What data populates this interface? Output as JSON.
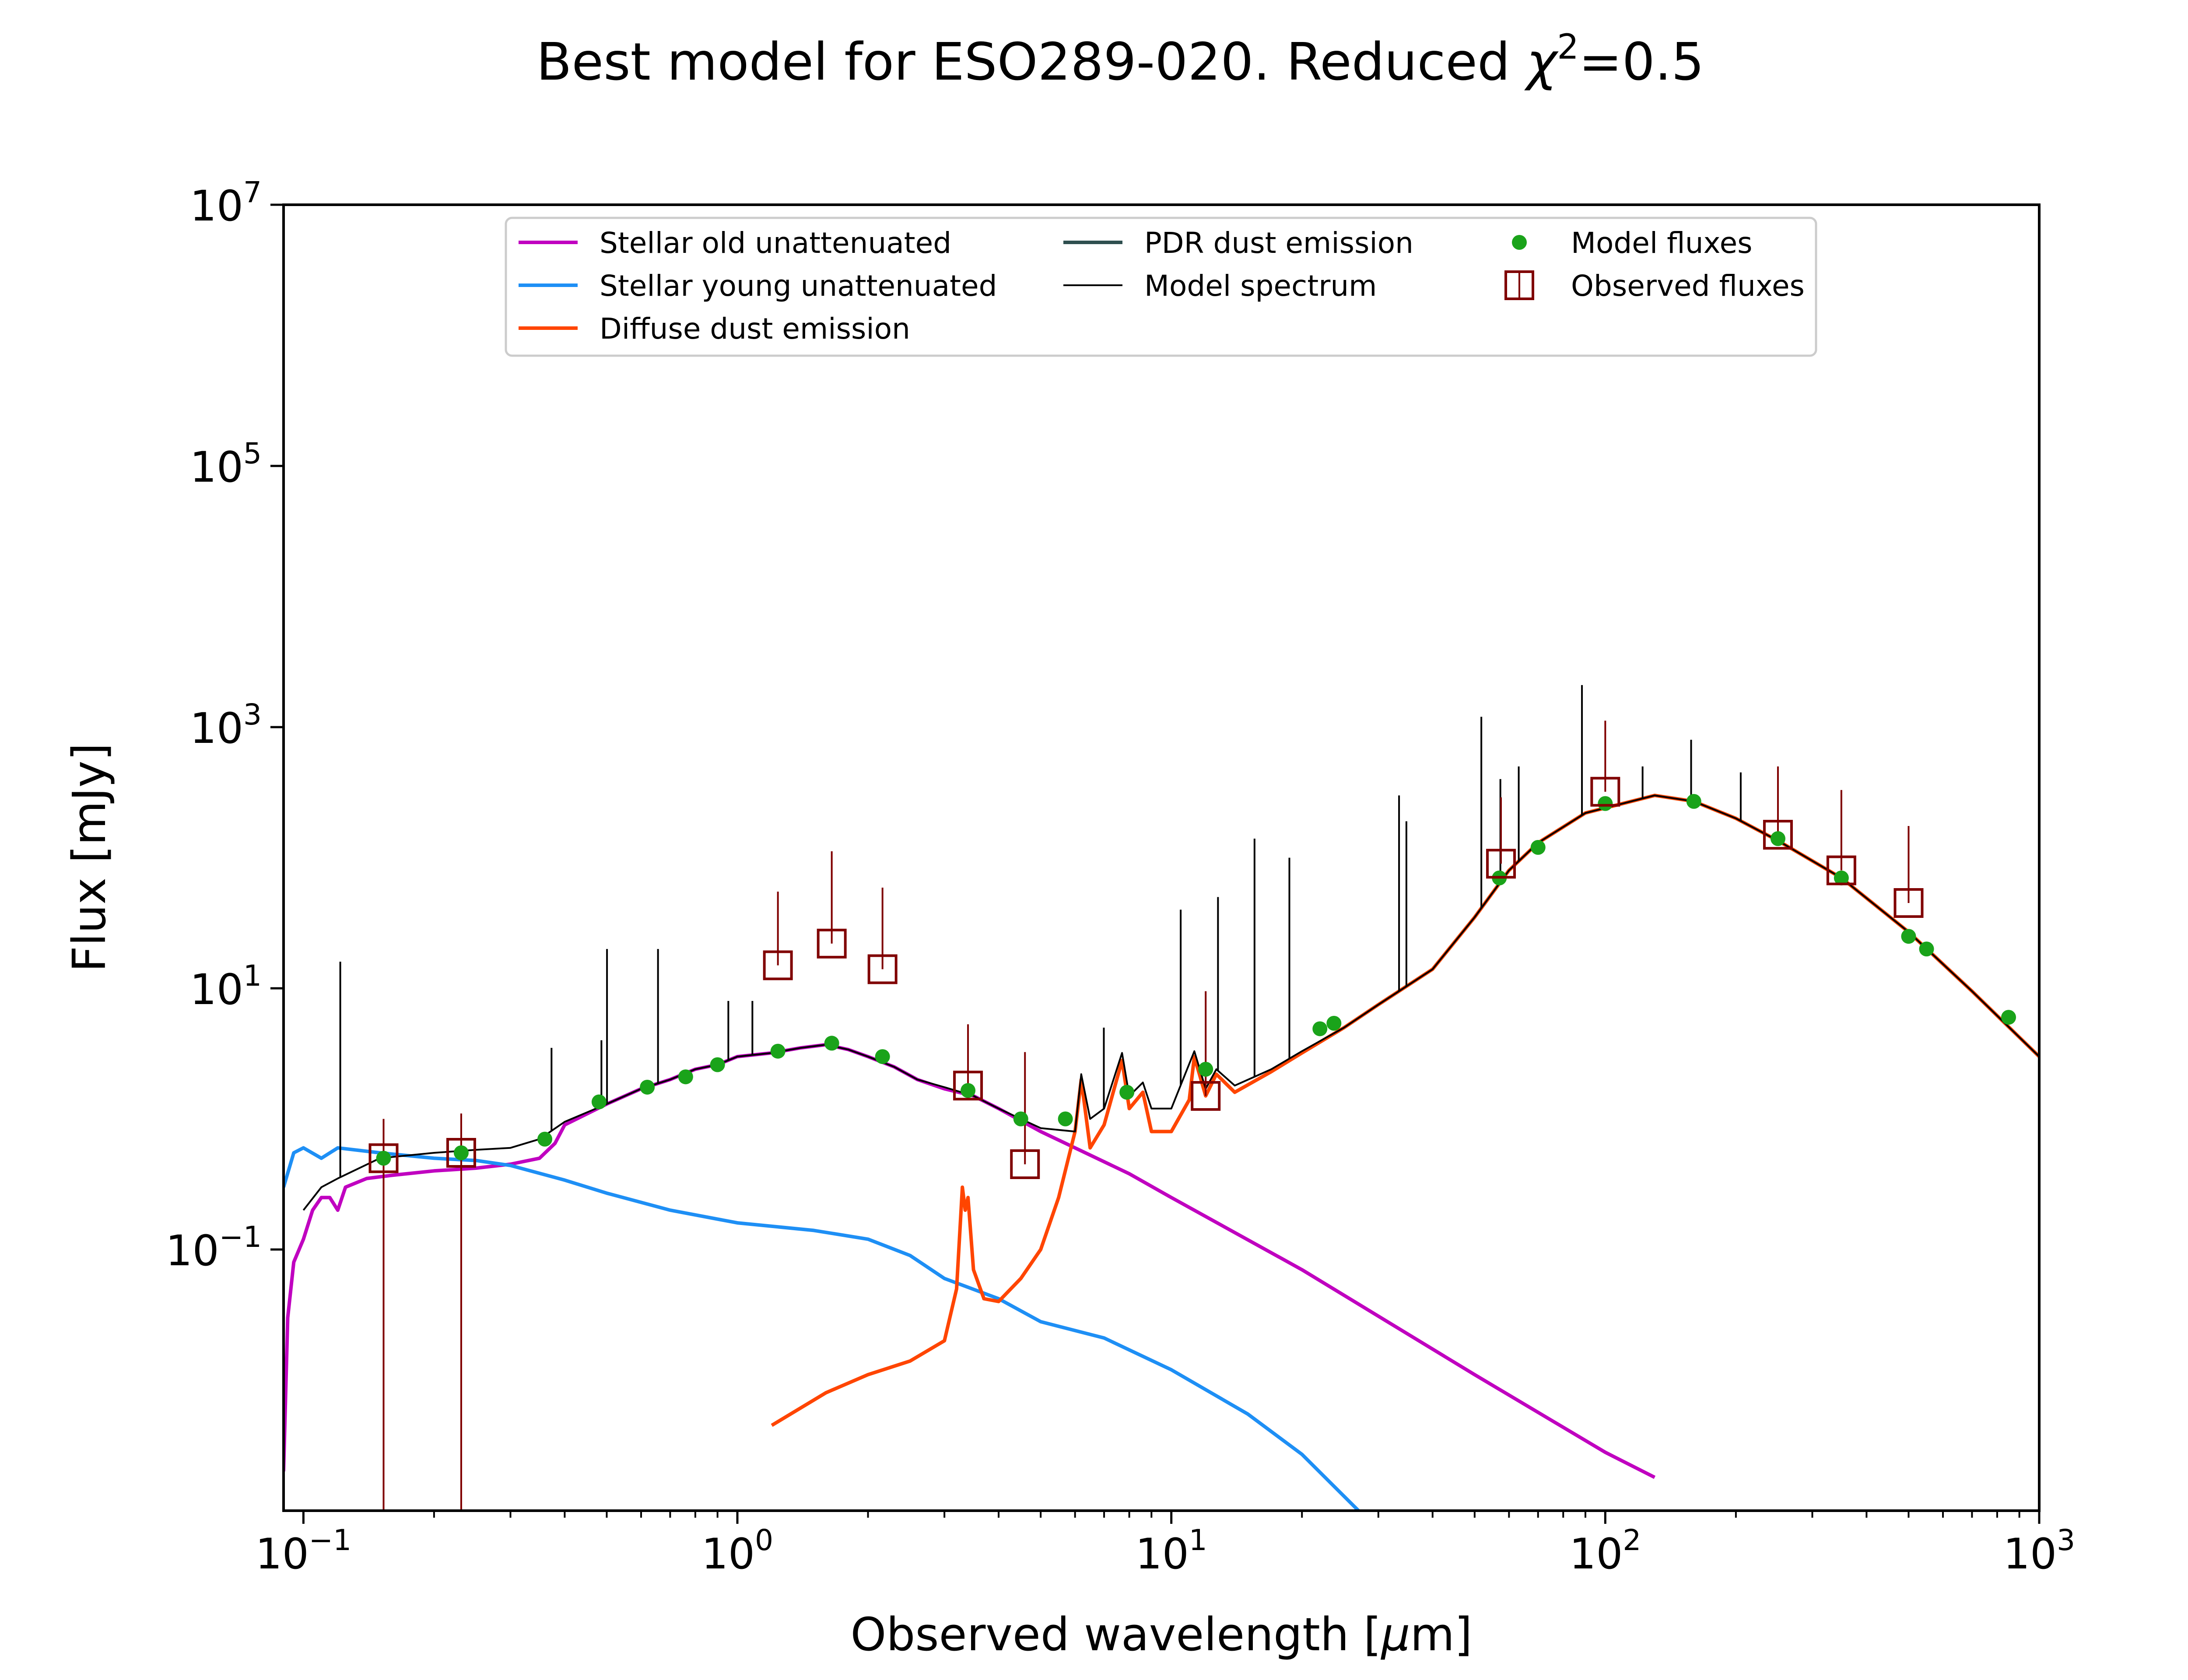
{
  "chart_data": {
    "type": "line",
    "title": "Best model for ESO289-020. Reduced χ²=0.5",
    "title_main": "Best model for ESO289-020. Reduced ",
    "title_chi": "χ",
    "title_sup": "2",
    "title_tail": "=0.5",
    "xlabel": "Observed wavelength [μm]",
    "xlabel_main": "Observed wavelength [",
    "xlabel_mu": "μ",
    "xlabel_tail": "m]",
    "ylabel": "Flux [mJy]",
    "xscale": "log",
    "yscale": "log",
    "xlim": [
      0.09,
      1000
    ],
    "ylim": [
      0.001,
      10000000
    ],
    "xticks": [
      {
        "value": 0.1,
        "base": "10",
        "exp": "−1"
      },
      {
        "value": 1,
        "base": "10",
        "exp": "0"
      },
      {
        "value": 10,
        "base": "10",
        "exp": "1"
      },
      {
        "value": 100,
        "base": "10",
        "exp": "2"
      },
      {
        "value": 1000,
        "base": "10",
        "exp": "3"
      }
    ],
    "yticks": [
      {
        "value": 0.1,
        "base": "10",
        "exp": "−1"
      },
      {
        "value": 10,
        "base": "10",
        "exp": "1"
      },
      {
        "value": 1000,
        "base": "10",
        "exp": "3"
      },
      {
        "value": 100000,
        "base": "10",
        "exp": "5"
      },
      {
        "value": 10000000,
        "base": "10",
        "exp": "7"
      }
    ],
    "grid": false,
    "legend": {
      "placement": "top-center",
      "entries": [
        {
          "label": "Stellar old unattenuated",
          "color": "#c000c0",
          "kind": "line"
        },
        {
          "label": "Stellar young unattenuated",
          "color": "#1e8ff5",
          "kind": "line"
        },
        {
          "label": "Diffuse dust emission",
          "color": "#ff4500",
          "kind": "line"
        },
        {
          "label": "PDR dust emission",
          "color": "#2f4f4f",
          "kind": "line"
        },
        {
          "label": "Model spectrum",
          "color": "#000000",
          "kind": "thinline"
        },
        {
          "label": "Model fluxes",
          "color": "#1aa31a",
          "kind": "dot"
        },
        {
          "label": "Observed fluxes",
          "color": "#800000",
          "kind": "square"
        }
      ]
    },
    "series": [
      {
        "name": "Stellar old unattenuated",
        "color": "#c000c0",
        "points": [
          [
            0.09,
            0.002
          ],
          [
            0.092,
            0.03
          ],
          [
            0.095,
            0.08
          ],
          [
            0.1,
            0.12
          ],
          [
            0.105,
            0.2
          ],
          [
            0.11,
            0.25
          ],
          [
            0.115,
            0.25
          ],
          [
            0.12,
            0.2
          ],
          [
            0.125,
            0.3
          ],
          [
            0.14,
            0.35
          ],
          [
            0.16,
            0.37
          ],
          [
            0.2,
            0.4
          ],
          [
            0.25,
            0.42
          ],
          [
            0.3,
            0.45
          ],
          [
            0.35,
            0.5
          ],
          [
            0.38,
            0.65
          ],
          [
            0.4,
            0.9
          ],
          [
            0.5,
            1.3
          ],
          [
            0.6,
            1.7
          ],
          [
            0.7,
            2.0
          ],
          [
            0.8,
            2.4
          ],
          [
            0.9,
            2.6
          ],
          [
            1.0,
            3.0
          ],
          [
            1.2,
            3.2
          ],
          [
            1.4,
            3.5
          ],
          [
            1.6,
            3.7
          ],
          [
            1.8,
            3.4
          ],
          [
            2.0,
            3.0
          ],
          [
            2.3,
            2.5
          ],
          [
            2.6,
            2.0
          ],
          [
            3.0,
            1.7
          ],
          [
            3.5,
            1.5
          ],
          [
            4.0,
            1.2
          ],
          [
            5.0,
            0.8
          ],
          [
            6.0,
            0.6
          ],
          [
            8.0,
            0.38
          ],
          [
            10.0,
            0.25
          ],
          [
            20.0,
            0.07
          ],
          [
            50.0,
            0.011
          ],
          [
            100.0,
            0.0028
          ],
          [
            130.0,
            0.0018
          ]
        ]
      },
      {
        "name": "Stellar young unattenuated",
        "color": "#1e8ff5",
        "points": [
          [
            0.09,
            0.3
          ],
          [
            0.095,
            0.55
          ],
          [
            0.1,
            0.6
          ],
          [
            0.11,
            0.5
          ],
          [
            0.12,
            0.6
          ],
          [
            0.15,
            0.55
          ],
          [
            0.2,
            0.5
          ],
          [
            0.25,
            0.48
          ],
          [
            0.3,
            0.44
          ],
          [
            0.4,
            0.34
          ],
          [
            0.5,
            0.27
          ],
          [
            0.7,
            0.2
          ],
          [
            1.0,
            0.16
          ],
          [
            1.5,
            0.14
          ],
          [
            2.0,
            0.12
          ],
          [
            2.5,
            0.09
          ],
          [
            3.0,
            0.06
          ],
          [
            4.0,
            0.042
          ],
          [
            5.0,
            0.028
          ],
          [
            7.0,
            0.021
          ],
          [
            10.0,
            0.012
          ],
          [
            15.0,
            0.0055
          ],
          [
            20.0,
            0.0027
          ],
          [
            27.0,
            0.001
          ]
        ]
      },
      {
        "name": "Diffuse dust emission",
        "color": "#ff4500",
        "points": [
          [
            1.2,
            0.0045
          ],
          [
            1.6,
            0.008
          ],
          [
            2.0,
            0.011
          ],
          [
            2.5,
            0.014
          ],
          [
            3.0,
            0.02
          ],
          [
            3.2,
            0.05
          ],
          [
            3.3,
            0.3
          ],
          [
            3.35,
            0.2
          ],
          [
            3.4,
            0.25
          ],
          [
            3.5,
            0.07
          ],
          [
            3.7,
            0.042
          ],
          [
            4.0,
            0.04
          ],
          [
            4.5,
            0.06
          ],
          [
            5.0,
            0.1
          ],
          [
            5.5,
            0.25
          ],
          [
            6.0,
            0.8
          ],
          [
            6.2,
            2.0
          ],
          [
            6.5,
            0.6
          ],
          [
            7.0,
            0.9
          ],
          [
            7.7,
            2.8
          ],
          [
            8.0,
            1.2
          ],
          [
            8.6,
            1.6
          ],
          [
            9.0,
            0.8
          ],
          [
            10.0,
            0.8
          ],
          [
            11.0,
            1.4
          ],
          [
            11.3,
            3.0
          ],
          [
            12.0,
            1.5
          ],
          [
            12.7,
            2.2
          ],
          [
            14.0,
            1.6
          ],
          [
            17.0,
            2.3
          ],
          [
            20.0,
            3.2
          ],
          [
            25.0,
            5.0
          ],
          [
            30.0,
            7.5
          ],
          [
            40.0,
            14.0
          ],
          [
            50.0,
            35.0
          ],
          [
            60.0,
            80.0
          ],
          [
            70.0,
            130.0
          ],
          [
            90.0,
            220.0
          ],
          [
            130.0,
            300.0
          ],
          [
            160.0,
            270.0
          ],
          [
            200.0,
            200.0
          ],
          [
            250.0,
            135.0
          ],
          [
            350.0,
            70.0
          ],
          [
            500.0,
            27.0
          ],
          [
            700.0,
            9.5
          ],
          [
            1000.0,
            3.0
          ]
        ]
      },
      {
        "name": "Model spectrum",
        "color": "#000000",
        "points": [
          [
            0.1,
            0.2
          ],
          [
            0.11,
            0.3
          ],
          [
            0.12,
            0.35
          ],
          [
            0.15,
            0.5
          ],
          [
            0.2,
            0.55
          ],
          [
            0.25,
            0.58
          ],
          [
            0.3,
            0.6
          ],
          [
            0.35,
            0.7
          ],
          [
            0.4,
            0.95
          ],
          [
            0.5,
            1.3
          ],
          [
            0.6,
            1.7
          ],
          [
            0.7,
            2.0
          ],
          [
            0.8,
            2.4
          ],
          [
            0.9,
            2.6
          ],
          [
            1.0,
            3.0
          ],
          [
            1.2,
            3.2
          ],
          [
            1.4,
            3.5
          ],
          [
            1.6,
            3.7
          ],
          [
            1.8,
            3.4
          ],
          [
            2.0,
            3.0
          ],
          [
            2.3,
            2.5
          ],
          [
            2.6,
            2.0
          ],
          [
            3.0,
            1.75
          ],
          [
            3.5,
            1.5
          ],
          [
            4.0,
            1.2
          ],
          [
            5.0,
            0.85
          ],
          [
            6.0,
            0.8
          ],
          [
            6.2,
            2.2
          ],
          [
            6.5,
            1.0
          ],
          [
            7.0,
            1.2
          ],
          [
            7.7,
            3.2
          ],
          [
            8.0,
            1.5
          ],
          [
            8.6,
            1.9
          ],
          [
            9.0,
            1.2
          ],
          [
            10.0,
            1.2
          ],
          [
            11.3,
            3.3
          ],
          [
            12.0,
            1.7
          ],
          [
            12.7,
            2.4
          ],
          [
            14.0,
            1.8
          ],
          [
            17.0,
            2.4
          ],
          [
            20.0,
            3.3
          ],
          [
            25.0,
            5.0
          ],
          [
            30.0,
            7.5
          ],
          [
            40.0,
            14.0
          ],
          [
            50.0,
            35.0
          ],
          [
            60.0,
            80.0
          ],
          [
            70.0,
            130.0
          ],
          [
            90.0,
            220.0
          ],
          [
            130.0,
            300.0
          ],
          [
            160.0,
            270.0
          ],
          [
            200.0,
            200.0
          ],
          [
            250.0,
            135.0
          ],
          [
            350.0,
            70.0
          ],
          [
            500.0,
            27.0
          ],
          [
            700.0,
            9.5
          ],
          [
            1000.0,
            3.0
          ]
        ]
      }
    ],
    "emission_lines": [
      {
        "x": 0.1216,
        "y": 16
      },
      {
        "x": 0.373,
        "y": 3.5
      },
      {
        "x": 0.4861,
        "y": 4
      },
      {
        "x": 0.5007,
        "y": 20
      },
      {
        "x": 0.6563,
        "y": 20
      },
      {
        "x": 0.9532,
        "y": 8
      },
      {
        "x": 1.083,
        "y": 8
      },
      {
        "x": 6.99,
        "y": 5
      },
      {
        "x": 10.51,
        "y": 40
      },
      {
        "x": 12.81,
        "y": 50
      },
      {
        "x": 15.55,
        "y": 140
      },
      {
        "x": 18.71,
        "y": 100
      },
      {
        "x": 33.48,
        "y": 300
      },
      {
        "x": 34.81,
        "y": 190
      },
      {
        "x": 51.81,
        "y": 1200
      },
      {
        "x": 57.32,
        "y": 400
      },
      {
        "x": 63.18,
        "y": 500
      },
      {
        "x": 88.36,
        "y": 2100
      },
      {
        "x": 121.9,
        "y": 500
      },
      {
        "x": 157.7,
        "y": 800
      },
      {
        "x": 205.2,
        "y": 450
      }
    ],
    "model_fluxes": [
      [
        0.153,
        0.5
      ],
      [
        0.231,
        0.55
      ],
      [
        0.36,
        0.7
      ],
      [
        0.48,
        1.35
      ],
      [
        0.62,
        1.75
      ],
      [
        0.76,
        2.1
      ],
      [
        0.9,
        2.6
      ],
      [
        1.24,
        3.3
      ],
      [
        1.65,
        3.8
      ],
      [
        2.16,
        3.0
      ],
      [
        3.4,
        1.65
      ],
      [
        4.5,
        1.0
      ],
      [
        5.7,
        1.0
      ],
      [
        7.9,
        1.6
      ],
      [
        12.0,
        2.4
      ],
      [
        22.0,
        4.9
      ],
      [
        23.7,
        5.4
      ],
      [
        57.0,
        70.0
      ],
      [
        70.0,
        120.0
      ],
      [
        100.0,
        260.0
      ],
      [
        160.0,
        270.0
      ],
      [
        250.0,
        140.0
      ],
      [
        350.0,
        70.0
      ],
      [
        500.0,
        25.0
      ],
      [
        550.0,
        20.0
      ],
      [
        850.0,
        6.0
      ]
    ],
    "observed_fluxes": [
      {
        "x": 0.153,
        "y": 0.5,
        "err_lo": 0.5,
        "err_hi": 0.5
      },
      {
        "x": 0.231,
        "y": 0.55,
        "err_lo": 0.55,
        "err_hi": 0.55
      },
      {
        "x": 1.24,
        "y": 15.0,
        "err_lo": 0.001,
        "err_hi": 40.0
      },
      {
        "x": 1.65,
        "y": 22.0,
        "err_lo": 0.001,
        "err_hi": 90.0
      },
      {
        "x": 2.16,
        "y": 14.0,
        "err_lo": 0.001,
        "err_hi": 45.0
      },
      {
        "x": 3.4,
        "y": 1.8,
        "err_lo": 0.001,
        "err_hi": 3.5
      },
      {
        "x": 4.6,
        "y": 0.45,
        "err_lo": 0.001,
        "err_hi": 2.8
      },
      {
        "x": 12.0,
        "y": 1.5,
        "err_lo": 0.001,
        "err_hi": 8.0
      },
      {
        "x": 57.5,
        "y": 90.0,
        "err_lo": 0.001,
        "err_hi": 200.0
      },
      {
        "x": 100.0,
        "y": 320.0,
        "err_lo": 0.001,
        "err_hi": 800.0
      },
      {
        "x": 250.0,
        "y": 150.0,
        "err_lo": 0.001,
        "err_hi": 350.0
      },
      {
        "x": 350.0,
        "y": 80.0,
        "err_lo": 0.001,
        "err_hi": 250.0
      },
      {
        "x": 500.0,
        "y": 45.0,
        "err_lo": 0.001,
        "err_hi": 130.0
      }
    ]
  }
}
